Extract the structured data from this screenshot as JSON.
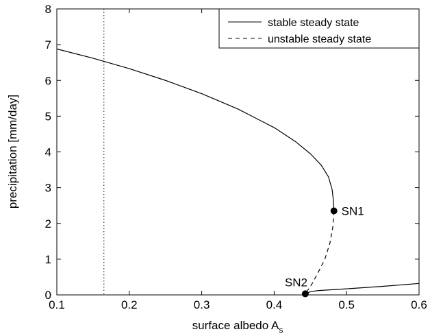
{
  "chart_data": {
    "type": "line",
    "xlabel": "surface albedo A",
    "xlabel_subscript": "s",
    "ylabel": "precipitation [mm/day]",
    "xlim": [
      0.1,
      0.6
    ],
    "ylim": [
      0,
      8
    ],
    "xticks": [
      "0.1",
      "0.2",
      "0.3",
      "0.4",
      "0.5",
      "0.6"
    ],
    "yticks": [
      "0",
      "1",
      "2",
      "3",
      "4",
      "5",
      "6",
      "7",
      "8"
    ],
    "grid": false,
    "legend_position": "top-right",
    "reference_line": {
      "x": 0.165,
      "style": "dotted"
    },
    "series": [
      {
        "name": "stable steady state",
        "style": "solid",
        "segments": [
          [
            [
              0.1,
              6.88
            ],
            [
              0.15,
              6.62
            ],
            [
              0.2,
              6.33
            ],
            [
              0.25,
              6.0
            ],
            [
              0.3,
              5.63
            ],
            [
              0.35,
              5.2
            ],
            [
              0.4,
              4.68
            ],
            [
              0.43,
              4.28
            ],
            [
              0.45,
              3.95
            ],
            [
              0.465,
              3.63
            ],
            [
              0.475,
              3.3
            ],
            [
              0.48,
              2.95
            ],
            [
              0.482,
              2.6
            ],
            [
              0.4825,
              2.35
            ]
          ],
          [
            [
              0.443,
              0.03
            ],
            [
              0.45,
              0.09
            ],
            [
              0.46,
              0.12
            ],
            [
              0.5,
              0.17
            ],
            [
              0.55,
              0.24
            ],
            [
              0.6,
              0.32
            ]
          ]
        ]
      },
      {
        "name": "unstable steady state",
        "style": "dashed",
        "segments": [
          [
            [
              0.4825,
              2.35
            ],
            [
              0.481,
              1.9
            ],
            [
              0.477,
              1.45
            ],
            [
              0.47,
              1.0
            ],
            [
              0.46,
              0.6
            ],
            [
              0.452,
              0.3
            ],
            [
              0.443,
              0.03
            ]
          ]
        ]
      }
    ],
    "points": [
      {
        "label": "SN1",
        "x": 0.4825,
        "y": 2.35
      },
      {
        "label": "SN2",
        "x": 0.443,
        "y": 0.03
      }
    ]
  }
}
